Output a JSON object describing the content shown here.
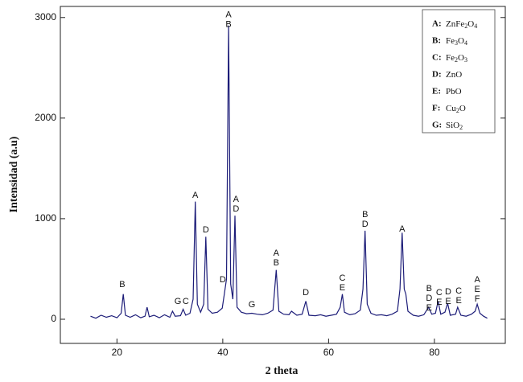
{
  "chart_data": {
    "type": "line",
    "xlabel": "2  theta",
    "ylabel": "Intensidad (a.u)",
    "xlim": [
      9.3,
      93.4
    ],
    "ylim": [
      -240,
      3110
    ],
    "xticks": [
      20,
      40,
      60,
      80
    ],
    "yticks": [
      0,
      1000,
      2000,
      3000
    ],
    "series": [
      {
        "color": "#1c1c78",
        "x": [
          15,
          16,
          17,
          18,
          19,
          20,
          20.8,
          21.2,
          21.6,
          22.5,
          23.5,
          24.5,
          25.3,
          25.7,
          26.1,
          27,
          28,
          29,
          30,
          30.5,
          31,
          32,
          32.5,
          33,
          33.8,
          34.4,
          34.8,
          35.2,
          35.8,
          36.4,
          36.8,
          37.2,
          38,
          39,
          39.9,
          40.3,
          40.7,
          41.1,
          41.5,
          41.9,
          42.3,
          42.7,
          43.5,
          44.5,
          45.5,
          46.5,
          47.5,
          48.5,
          49.5,
          50.1,
          50.6,
          51.5,
          52.5,
          53,
          54,
          55,
          55.7,
          56.3,
          57.5,
          58.5,
          59.5,
          60.5,
          61.5,
          62.2,
          62.6,
          63,
          64,
          65,
          66,
          66.5,
          66.9,
          67.3,
          68,
          69,
          70,
          71,
          72,
          73,
          73.5,
          73.9,
          74.3,
          74.6,
          75,
          76,
          77,
          78,
          78.9,
          79.5,
          80.2,
          80.7,
          81.2,
          82,
          82.5,
          83,
          84,
          84.4,
          85,
          86,
          87,
          87.7,
          88.1,
          88.6,
          89.3,
          90
        ],
        "values": [
          30,
          10,
          40,
          20,
          35,
          15,
          60,
          250,
          40,
          20,
          45,
          15,
          30,
          120,
          25,
          40,
          15,
          45,
          20,
          80,
          30,
          35,
          100,
          40,
          60,
          200,
          1170,
          150,
          70,
          150,
          820,
          100,
          60,
          70,
          110,
          250,
          400,
          2920,
          350,
          200,
          1030,
          120,
          70,
          55,
          60,
          50,
          45,
          60,
          90,
          490,
          80,
          50,
          45,
          80,
          40,
          50,
          180,
          40,
          35,
          45,
          30,
          40,
          50,
          120,
          250,
          70,
          45,
          55,
          90,
          300,
          880,
          150,
          60,
          40,
          45,
          35,
          50,
          80,
          300,
          860,
          300,
          250,
          80,
          40,
          30,
          45,
          120,
          50,
          60,
          180,
          50,
          70,
          160,
          40,
          50,
          120,
          40,
          30,
          50,
          80,
          150,
          60,
          30,
          10
        ]
      }
    ],
    "annotations": [
      {
        "x": 21,
        "y": 344,
        "lines": [
          "B"
        ]
      },
      {
        "x": 31.5,
        "y": 176,
        "lines": [
          "G"
        ]
      },
      {
        "x": 33,
        "y": 176,
        "lines": [
          "C"
        ]
      },
      {
        "x": 34.8,
        "y": 1232,
        "lines": [
          "A"
        ]
      },
      {
        "x": 36.8,
        "y": 888,
        "lines": [
          "D"
        ]
      },
      {
        "x": 40,
        "y": 392,
        "lines": [
          "D"
        ]
      },
      {
        "x": 41.1,
        "y": 2928,
        "lines": [
          "A",
          "B"
        ]
      },
      {
        "x": 42.5,
        "y": 1096,
        "lines": [
          "A",
          "D"
        ]
      },
      {
        "x": 45.5,
        "y": 144,
        "lines": [
          "G"
        ]
      },
      {
        "x": 50.1,
        "y": 560,
        "lines": [
          "A",
          "B"
        ]
      },
      {
        "x": 55.7,
        "y": 264,
        "lines": [
          "D"
        ]
      },
      {
        "x": 62.6,
        "y": 312,
        "lines": [
          "C",
          "E"
        ]
      },
      {
        "x": 66.9,
        "y": 944,
        "lines": [
          "B",
          "D"
        ]
      },
      {
        "x": 73.9,
        "y": 896,
        "lines": [
          "A"
        ]
      },
      {
        "x": 79,
        "y": 112,
        "lines": [
          "B",
          "D",
          "E"
        ]
      },
      {
        "x": 80.9,
        "y": 168,
        "lines": [
          "C",
          "E"
        ]
      },
      {
        "x": 82.6,
        "y": 176,
        "lines": [
          "D",
          "E"
        ]
      },
      {
        "x": 84.6,
        "y": 184,
        "lines": [
          "C",
          "E"
        ]
      },
      {
        "x": 88.1,
        "y": 200,
        "lines": [
          "A",
          "E",
          "F"
        ]
      }
    ],
    "legend": [
      {
        "key": "A:",
        "label": "ZnFe2O4"
      },
      {
        "key": "B:",
        "label": "Fe3O4"
      },
      {
        "key": "C:",
        "label": "Fe2O3"
      },
      {
        "key": "D:",
        "label": "ZnO"
      },
      {
        "key": "E:",
        "label": "PbO"
      },
      {
        "key": "F:",
        "label": "Cu2O"
      },
      {
        "key": "G:",
        "label": "SiO2"
      }
    ]
  }
}
